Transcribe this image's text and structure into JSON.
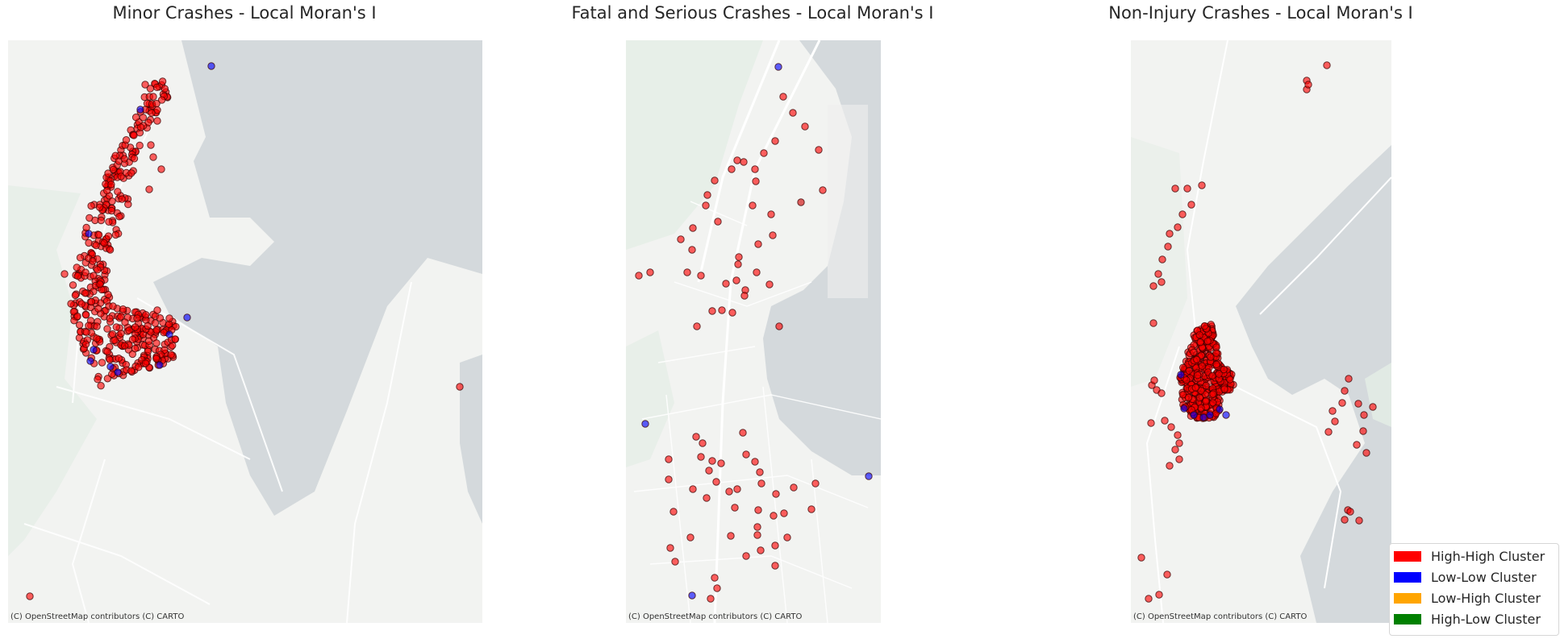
{
  "attribution": "(C) OpenStreetMap contributors (C) CARTO",
  "colors": {
    "high_high": "#ff0000",
    "low_low": "#0000ff",
    "low_high": "#ffa500",
    "high_low": "#008000",
    "water": "#d4d9dc",
    "land": "#f2f3f1",
    "green": "#e4ede6",
    "road": "#ffffff"
  },
  "legend": {
    "items": [
      {
        "label": "High-High Cluster",
        "color": "#ff0000"
      },
      {
        "label": "Low-Low Cluster",
        "color": "#0000ff"
      },
      {
        "label": "Low-High Cluster",
        "color": "#ffa500"
      },
      {
        "label": "High-Low Cluster",
        "color": "#008000"
      }
    ]
  },
  "panels": [
    {
      "title": "Minor Crashes - Local Moran's I"
    },
    {
      "title": "Fatal and Serious Crashes - Local Moran's I"
    },
    {
      "title": "Non-Injury Crashes - Local Moran's I"
    }
  ]
}
